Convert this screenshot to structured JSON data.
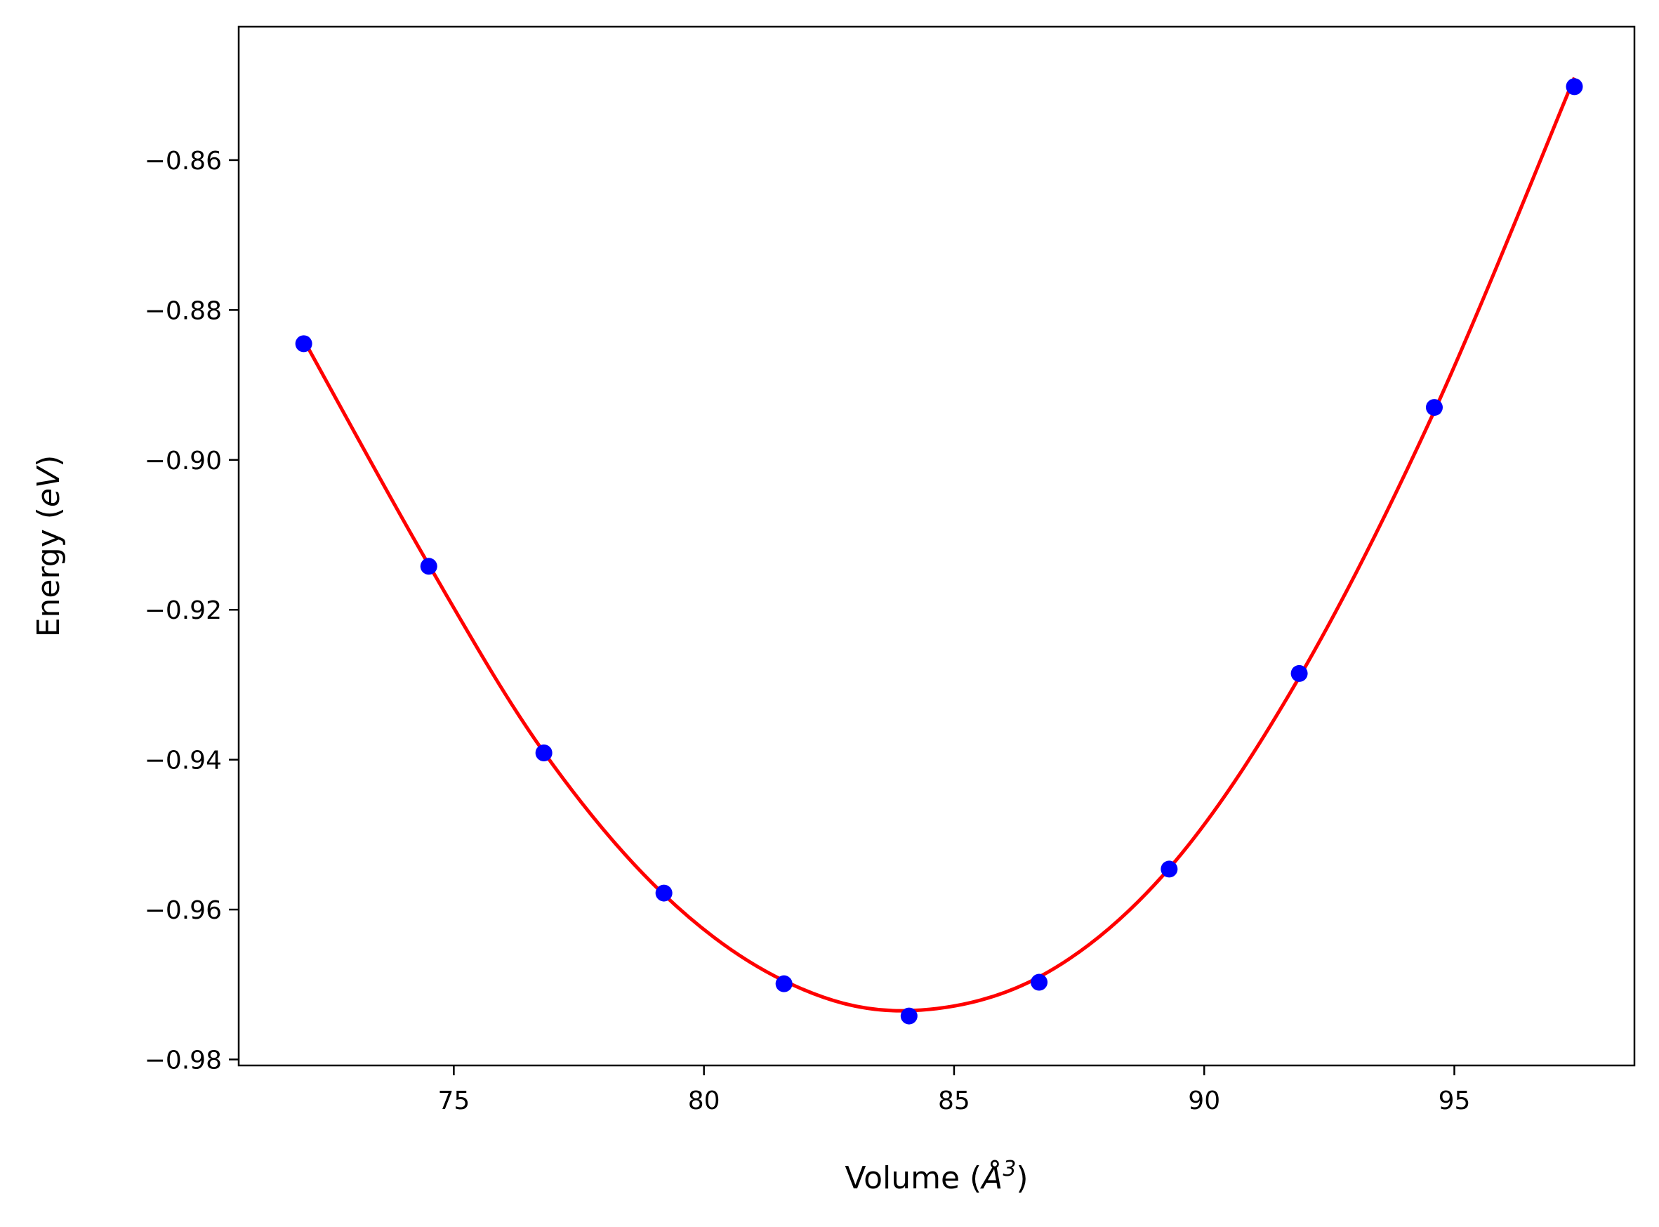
{
  "chart_data": {
    "type": "scatter",
    "xlabel": "Volume (Å³)",
    "xlabel_parts": {
      "prefix": "Volume (",
      "symbol": "Å",
      "exponent": "3",
      "suffix": ")"
    },
    "ylabel": "Energy (eV)",
    "ylabel_parts": {
      "prefix": "Energy (",
      "unit": "eV",
      "suffix": ")"
    },
    "xlim": [
      70.7,
      98.6
    ],
    "ylim": [
      -0.9808,
      -0.8422
    ],
    "xticks": [
      75,
      80,
      85,
      90,
      95
    ],
    "xtick_labels": [
      "75",
      "80",
      "85",
      "90",
      "95"
    ],
    "yticks": [
      -0.98,
      -0.96,
      -0.94,
      -0.92,
      -0.9,
      -0.88,
      -0.86
    ],
    "ytick_labels": [
      "−0.98",
      "−0.96",
      "−0.94",
      "−0.92",
      "−0.90",
      "−0.88",
      "−0.86"
    ],
    "grid": false,
    "legend": "none",
    "series": [
      {
        "kind": "points",
        "color": "#0000ff",
        "x": [
          72.0,
          74.5,
          76.8,
          79.2,
          81.6,
          84.1,
          86.7,
          89.3,
          91.9,
          94.6,
          97.4
        ],
        "y": [
          -0.8845,
          -0.9142,
          -0.9391,
          -0.9578,
          -0.9699,
          -0.9742,
          -0.9697,
          -0.9546,
          -0.9285,
          -0.893,
          -0.8502
        ]
      },
      {
        "kind": "fit-curve",
        "color": "#ff0000",
        "x": [
          72.0,
          74.5,
          76.8,
          79.2,
          81.6,
          84.0,
          86.7,
          89.3,
          91.9,
          94.6,
          97.4
        ],
        "y": [
          -0.884,
          -0.914,
          -0.939,
          -0.958,
          -0.9695,
          -0.9735,
          -0.969,
          -0.9545,
          -0.929,
          -0.8935,
          -0.849
        ]
      }
    ]
  }
}
